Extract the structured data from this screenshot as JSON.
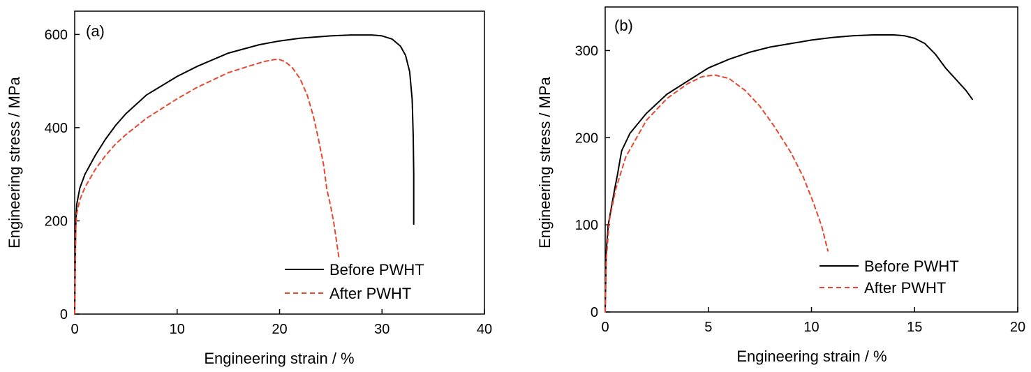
{
  "chart_data": [
    {
      "type": "line",
      "panel_label": "(a)",
      "xlabel": "Engineering strain / %",
      "ylabel": "Engineering stress / MPa",
      "xlim": [
        0,
        40
      ],
      "ylim": [
        0,
        650
      ],
      "xticks": [
        0,
        10,
        20,
        30,
        40
      ],
      "yticks": [
        0,
        200,
        400,
        600
      ],
      "legend_position": "bottom-right",
      "series": [
        {
          "name": "Before PWHT",
          "color": "#000000",
          "style": "solid",
          "points": [
            [
              0,
              0
            ],
            [
              0.05,
              100
            ],
            [
              0.1,
              190
            ],
            [
              0.2,
              235
            ],
            [
              0.5,
              270
            ],
            [
              1,
              300
            ],
            [
              2,
              340
            ],
            [
              3,
              375
            ],
            [
              4,
              405
            ],
            [
              5,
              430
            ],
            [
              7,
              470
            ],
            [
              10,
              510
            ],
            [
              12,
              532
            ],
            [
              15,
              560
            ],
            [
              18,
              578
            ],
            [
              20,
              586
            ],
            [
              22,
              592
            ],
            [
              25,
              597
            ],
            [
              27,
              599
            ],
            [
              29,
              599
            ],
            [
              30,
              597
            ],
            [
              31,
              590
            ],
            [
              31.8,
              575
            ],
            [
              32.3,
              555
            ],
            [
              32.7,
              520
            ],
            [
              32.95,
              460
            ],
            [
              33.05,
              380
            ],
            [
              33.1,
              300
            ],
            [
              33.1,
              193
            ]
          ]
        },
        {
          "name": "After PWHT",
          "color": "#e8472f",
          "style": "dashed",
          "points": [
            [
              0,
              0
            ],
            [
              0.05,
              100
            ],
            [
              0.1,
              180
            ],
            [
              0.2,
              215
            ],
            [
              0.5,
              245
            ],
            [
              1,
              272
            ],
            [
              2,
              310
            ],
            [
              3,
              340
            ],
            [
              4,
              365
            ],
            [
              5,
              385
            ],
            [
              7,
              420
            ],
            [
              10,
              462
            ],
            [
              12,
              487
            ],
            [
              15,
              518
            ],
            [
              17,
              532
            ],
            [
              18.5,
              542
            ],
            [
              19.5,
              546
            ],
            [
              20,
              546
            ],
            [
              20.5,
              542
            ],
            [
              21.2,
              530
            ],
            [
              22,
              505
            ],
            [
              22.7,
              470
            ],
            [
              23.3,
              425
            ],
            [
              23.8,
              375
            ],
            [
              24.3,
              320
            ],
            [
              24.6,
              270
            ],
            [
              25,
              230
            ],
            [
              25.3,
              195
            ],
            [
              25.6,
              150
            ],
            [
              25.8,
              120
            ]
          ]
        }
      ]
    },
    {
      "type": "line",
      "panel_label": "(b)",
      "xlabel": "Engineering strain / %",
      "ylabel": "Engineering stress / MPa",
      "xlim": [
        0,
        20
      ],
      "ylim": [
        0,
        350
      ],
      "xticks": [
        0,
        5,
        10,
        15,
        20
      ],
      "yticks": [
        0,
        100,
        200,
        300
      ],
      "legend_position": "bottom-right",
      "series": [
        {
          "name": "Before PWHT",
          "color": "#000000",
          "style": "solid",
          "points": [
            [
              0,
              0
            ],
            [
              0.05,
              70
            ],
            [
              0.15,
              100
            ],
            [
              0.3,
              120
            ],
            [
              0.45,
              140
            ],
            [
              0.6,
              158
            ],
            [
              0.7,
              172
            ],
            [
              0.8,
              185
            ],
            [
              1.2,
              205
            ],
            [
              2,
              228
            ],
            [
              3,
              250
            ],
            [
              4,
              265
            ],
            [
              5,
              280
            ],
            [
              6,
              290
            ],
            [
              7,
              298
            ],
            [
              8,
              304
            ],
            [
              9,
              308
            ],
            [
              10,
              312
            ],
            [
              11,
              315
            ],
            [
              12,
              317
            ],
            [
              13,
              318
            ],
            [
              14,
              318
            ],
            [
              14.5,
              317
            ],
            [
              15,
              314
            ],
            [
              15.5,
              308
            ],
            [
              16,
              296
            ],
            [
              16.5,
              280
            ],
            [
              17,
              267
            ],
            [
              17.5,
              254
            ],
            [
              17.8,
              244
            ]
          ]
        },
        {
          "name": "After PWHT",
          "color": "#e8472f",
          "style": "dashed",
          "points": [
            [
              0,
              0
            ],
            [
              0.05,
              60
            ],
            [
              0.2,
              105
            ],
            [
              0.5,
              140
            ],
            [
              1,
              178
            ],
            [
              2,
              220
            ],
            [
              3,
              245
            ],
            [
              4,
              262
            ],
            [
              4.7,
              270
            ],
            [
              5.3,
              272
            ],
            [
              6,
              268
            ],
            [
              6.8,
              254
            ],
            [
              7.5,
              236
            ],
            [
              8.2,
              213
            ],
            [
              9,
              183
            ],
            [
              9.6,
              155
            ],
            [
              10.1,
              125
            ],
            [
              10.5,
              98
            ],
            [
              10.8,
              70
            ]
          ]
        }
      ]
    }
  ]
}
